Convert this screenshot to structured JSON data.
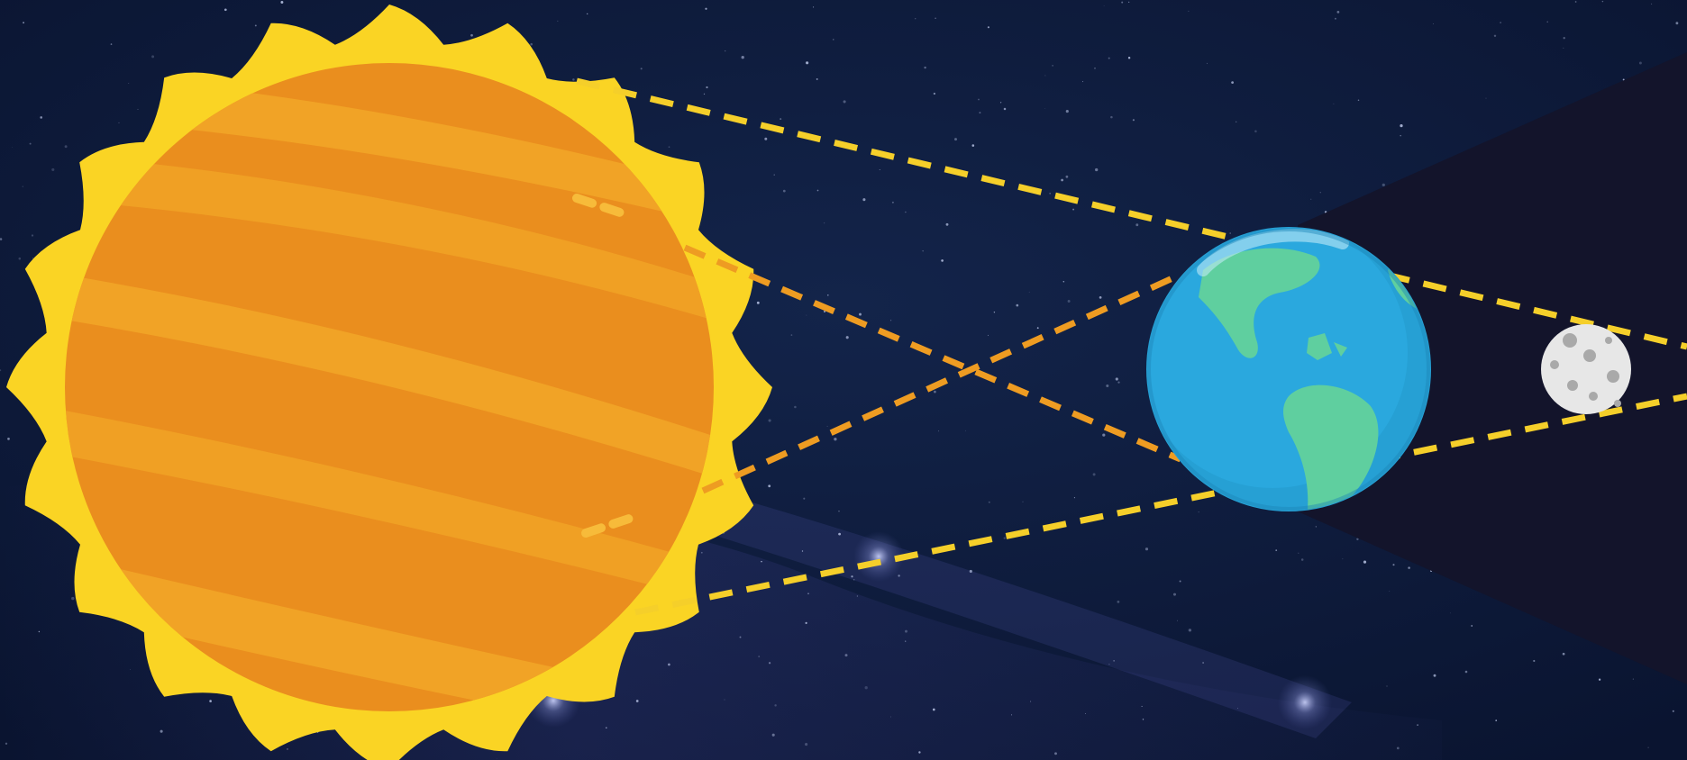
{
  "scene": {
    "bodies": [
      "sun",
      "earth",
      "moon"
    ],
    "colors": {
      "sky": "#0c1a38",
      "sky_band": "#3a3f8a",
      "umbra": "#13142b",
      "sun_corona": "#fad424",
      "sun_body": "#ea8e1e",
      "sun_band": "#f1a326",
      "ray_outer": "#f5cf2a",
      "ray_inner": "#ee9c22",
      "ocean": "#26a0d4",
      "land": "#5fcf9f",
      "moon": "#e7e7e7",
      "crater": "#a9a9a9"
    },
    "icons": [
      "sun-icon",
      "earth-icon",
      "moon-icon"
    ]
  }
}
